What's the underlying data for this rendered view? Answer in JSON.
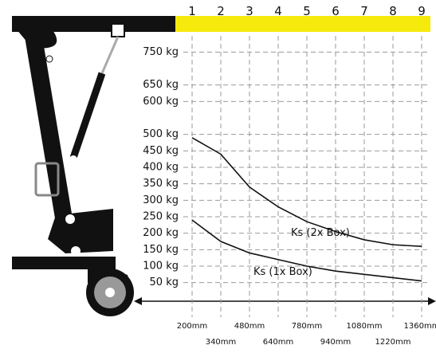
{
  "chart_data": {
    "type": "line",
    "positions": [
      1,
      2,
      3,
      4,
      5,
      6,
      7,
      8,
      9
    ],
    "categories": [
      "200mm",
      "340mm",
      "480mm",
      "640mm",
      "780mm",
      "940mm",
      "1080mm",
      "1220mm",
      "1360mm"
    ],
    "series": [
      {
        "name": "Ks (2x Box)",
        "color": "#111111",
        "values": [
          490,
          440,
          340,
          280,
          235,
          205,
          180,
          165,
          160
        ]
      },
      {
        "name": "Ks (1x Box)",
        "color": "#111111",
        "values": [
          240,
          175,
          140,
          120,
          100,
          85,
          75,
          65,
          55
        ]
      }
    ],
    "ylim": [
      25,
      775
    ],
    "yticks": [
      {
        "value": 750,
        "label": "750 kg"
      },
      {
        "value": 650,
        "label": "650 kg"
      },
      {
        "value": 600,
        "label": "600 kg"
      },
      {
        "value": 500,
        "label": "500 kg"
      },
      {
        "value": 450,
        "label": "450 kg"
      },
      {
        "value": 400,
        "label": "400 kg"
      },
      {
        "value": 350,
        "label": "350 kg"
      },
      {
        "value": 300,
        "label": "300 kg"
      },
      {
        "value": 250,
        "label": "250 kg"
      },
      {
        "value": 200,
        "label": "200 kg"
      },
      {
        "value": 150,
        "label": "150 kg"
      },
      {
        "value": 100,
        "label": "100 kg"
      },
      {
        "value": 50,
        "label": "50 kg"
      }
    ],
    "grid": true
  }
}
